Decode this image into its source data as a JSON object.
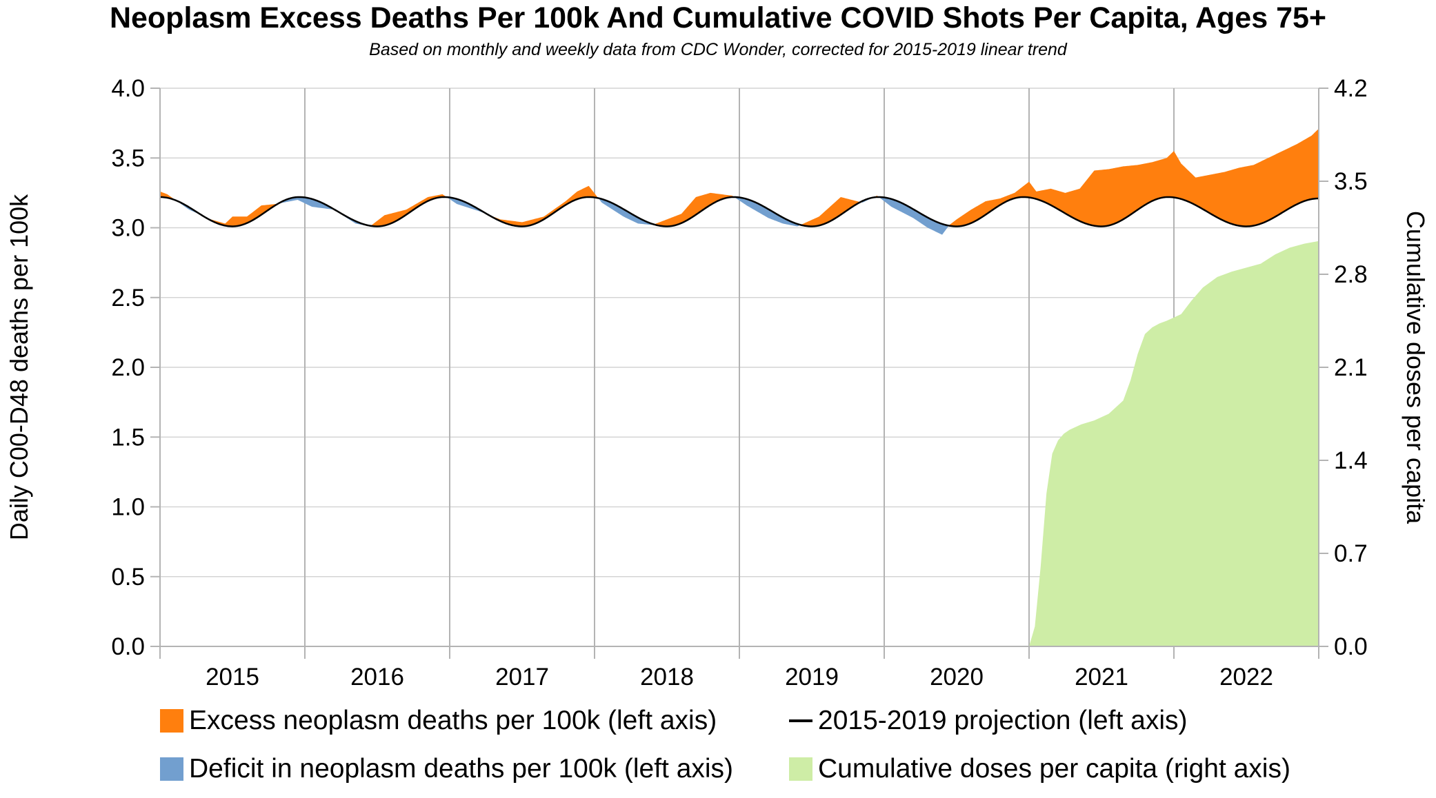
{
  "colors": {
    "excess": "#ff7f0e",
    "deficit": "#729fcf",
    "projection": "#000000",
    "doses": "#ceeda6",
    "grid": "#d4d4d4",
    "year_grid": "#b3b3b3"
  },
  "chart_data": {
    "type": "area",
    "title": "Neoplasm Excess Deaths Per 100k And Cumulative COVID Shots Per Capita, Ages 75+",
    "subtitle": "Based on monthly and weekly data from CDC Wonder, corrected for 2015-2019 linear trend",
    "ylabel": "Daily C00-D48 deaths per 100k",
    "y2label": "Cumulative doses per capita",
    "ylim": [
      0,
      4
    ],
    "y2lim": [
      0,
      4.2
    ],
    "yticks": [
      "0.0",
      "0.5",
      "1.0",
      "1.5",
      "2.0",
      "2.5",
      "3.0",
      "3.5",
      "4.0"
    ],
    "y2ticks": [
      "0.0",
      "0.7",
      "1.4",
      "2.1",
      "2.8",
      "3.5",
      "4.2"
    ],
    "xlim": [
      2015,
      2023
    ],
    "categories": [
      "2015",
      "2016",
      "2017",
      "2018",
      "2019",
      "2020",
      "2021",
      "2022"
    ],
    "grid": true,
    "legend_position": "bottom",
    "legend": [
      "Excess neoplasm deaths per 100k (left axis)",
      "2015-2019 projection (left axis)",
      "Deficit in neoplasm deaths per 100k (left axis)",
      "Cumulative doses per capita (right axis)"
    ],
    "projection": {
      "x": [
        2015.0,
        2015.5,
        2015.96,
        2016.5,
        2016.96,
        2017.5,
        2017.96,
        2018.5,
        2018.96,
        2019.5,
        2019.96,
        2020.5,
        2020.96,
        2021.5,
        2021.96,
        2022.5,
        2023.0
      ],
      "y": [
        3.22,
        3.01,
        3.22,
        3.01,
        3.22,
        3.01,
        3.22,
        3.01,
        3.22,
        3.01,
        3.22,
        3.01,
        3.22,
        3.01,
        3.22,
        3.01,
        3.21
      ]
    },
    "actual": {
      "x": [
        2015.0,
        2015.05,
        2015.2,
        2015.35,
        2015.45,
        2015.5,
        2015.6,
        2015.7,
        2015.8,
        2015.95,
        2016.05,
        2016.2,
        2016.35,
        2016.45,
        2016.55,
        2016.7,
        2016.85,
        2016.95,
        2017.05,
        2017.2,
        2017.35,
        2017.5,
        2017.65,
        2017.8,
        2017.88,
        2017.96,
        2018.05,
        2018.2,
        2018.3,
        2018.4,
        2018.5,
        2018.6,
        2018.7,
        2018.8,
        2018.95,
        2019.05,
        2019.2,
        2019.3,
        2019.4,
        2019.55,
        2019.7,
        2019.85,
        2019.95,
        2020.05,
        2020.2,
        2020.3,
        2020.4,
        2020.45,
        2020.5,
        2020.6,
        2020.7,
        2020.8,
        2020.9,
        2021.0,
        2021.05,
        2021.15,
        2021.25,
        2021.35,
        2021.45,
        2021.55,
        2021.65,
        2021.75,
        2021.85,
        2021.95,
        2022.0,
        2022.05,
        2022.15,
        2022.25,
        2022.35,
        2022.45,
        2022.55,
        2022.65,
        2022.75,
        2022.85,
        2022.95,
        2023.0
      ],
      "y": [
        3.26,
        3.24,
        3.13,
        3.06,
        3.03,
        3.08,
        3.08,
        3.16,
        3.17,
        3.2,
        3.15,
        3.13,
        3.03,
        3.01,
        3.09,
        3.13,
        3.22,
        3.24,
        3.17,
        3.12,
        3.06,
        3.04,
        3.08,
        3.19,
        3.26,
        3.3,
        3.18,
        3.08,
        3.03,
        3.02,
        3.06,
        3.1,
        3.22,
        3.25,
        3.23,
        3.16,
        3.07,
        3.03,
        3.01,
        3.08,
        3.22,
        3.18,
        3.23,
        3.15,
        3.07,
        3.0,
        2.95,
        3.02,
        3.06,
        3.13,
        3.19,
        3.21,
        3.25,
        3.33,
        3.26,
        3.28,
        3.25,
        3.28,
        3.41,
        3.42,
        3.44,
        3.45,
        3.47,
        3.5,
        3.55,
        3.46,
        3.36,
        3.38,
        3.4,
        3.43,
        3.45,
        3.5,
        3.55,
        3.6,
        3.66,
        3.71
      ]
    },
    "doses": {
      "x": [
        2021.0,
        2021.04,
        2021.08,
        2021.12,
        2021.16,
        2021.2,
        2021.24,
        2021.28,
        2021.32,
        2021.36,
        2021.45,
        2021.55,
        2021.65,
        2021.7,
        2021.75,
        2021.8,
        2021.85,
        2021.9,
        2021.95,
        2022.05,
        2022.12,
        2022.2,
        2022.3,
        2022.4,
        2022.5,
        2022.6,
        2022.7,
        2022.8,
        2022.9,
        2023.0
      ],
      "y": [
        0.0,
        0.15,
        0.6,
        1.15,
        1.45,
        1.55,
        1.6,
        1.63,
        1.65,
        1.67,
        1.7,
        1.75,
        1.85,
        2.0,
        2.2,
        2.35,
        2.4,
        2.43,
        2.45,
        2.5,
        2.6,
        2.7,
        2.78,
        2.82,
        2.85,
        2.88,
        2.95,
        3.0,
        3.03,
        3.05
      ]
    }
  }
}
